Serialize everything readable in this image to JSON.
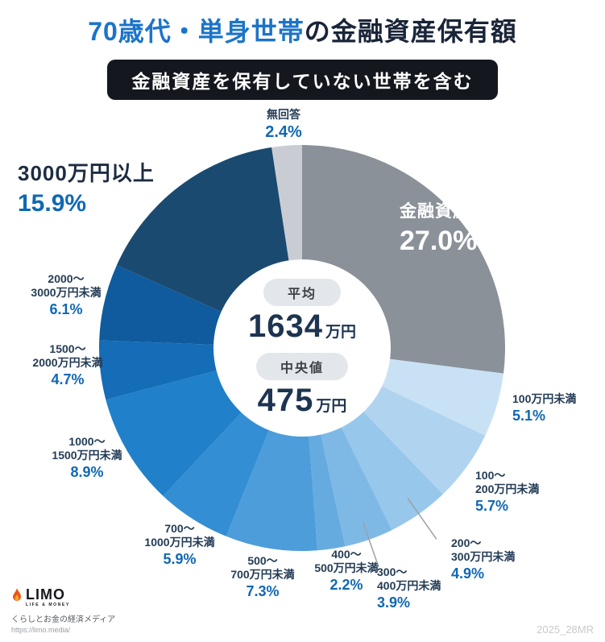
{
  "title": {
    "highlight": "70歳代・単身世帯",
    "rest": "の金融資産保有額"
  },
  "subtitle": "金融資産を保有していない世帯を含む",
  "center": {
    "avg_label": "平均",
    "avg_value": "1634",
    "avg_unit": "万円",
    "median_label": "中央値",
    "median_value": "475",
    "median_unit": "万円"
  },
  "callouts": {
    "no_answer": {
      "line1": "無回答",
      "pct": "2.4%"
    },
    "non_holding": {
      "line1": "金融資産非保有",
      "pct": "27.0%"
    },
    "u100": {
      "line1": "100万円未満",
      "pct": "5.1%"
    },
    "r100_200": {
      "line1": "100〜",
      "line2": "200万円未満",
      "pct": "5.7%"
    },
    "r200_300": {
      "line1": "200〜",
      "line2": "300万円未満",
      "pct": "4.9%"
    },
    "r300_400": {
      "line1": "300〜",
      "line2": "400万円未満",
      "pct": "3.9%"
    },
    "r400_500": {
      "line1": "400〜",
      "line2": "500万円未満",
      "pct": "2.2%"
    },
    "r500_700": {
      "line1": "500〜",
      "line2": "700万円未満",
      "pct": "7.3%"
    },
    "r700_1000": {
      "line1": "700〜",
      "line2": "1000万円未満",
      "pct": "5.9%"
    },
    "r1000_1500": {
      "line1": "1000〜",
      "line2": "1500万円未満",
      "pct": "8.9%"
    },
    "r1500_2000": {
      "line1": "1500〜",
      "line2": "2000万円未満",
      "pct": "4.7%"
    },
    "r2000_3000": {
      "line1": "2000〜",
      "line2": "3000万円未満",
      "pct": "6.1%"
    },
    "over3000": {
      "line1": "3000万円以上",
      "pct": "15.9%"
    }
  },
  "footer": {
    "logo": "LIMO",
    "logo_sub": "LIFE & MONEY",
    "tagline": "くらしとお金の経済メディア",
    "url": "https://limo.media/",
    "watermark": "2025_28MR"
  },
  "chart_data": {
    "type": "pie",
    "donut": true,
    "title": "70歳代・単身世帯の金融資産保有額（金融資産を保有していない世帯を含む）",
    "start_angle_deg": 0,
    "direction": "clockwise",
    "unit": "%",
    "segments": [
      {
        "label": "金融資産非保有",
        "value": 27.0,
        "color": "#8b9199"
      },
      {
        "label": "100万円未満",
        "value": 5.1,
        "color": "#c9e1f5"
      },
      {
        "label": "100〜200万円未満",
        "value": 5.7,
        "color": "#b0d4f0"
      },
      {
        "label": "200〜300万円未満",
        "value": 4.9,
        "color": "#97c7eb"
      },
      {
        "label": "300〜400万円未満",
        "value": 3.9,
        "color": "#7eb9e6"
      },
      {
        "label": "400〜500万円未満",
        "value": 2.2,
        "color": "#65abe0"
      },
      {
        "label": "500〜700万円未満",
        "value": 7.3,
        "color": "#4c9dda"
      },
      {
        "label": "700〜1000万円未満",
        "value": 5.9,
        "color": "#338ed3"
      },
      {
        "label": "1000〜1500万円未満",
        "value": 8.9,
        "color": "#2080ca"
      },
      {
        "label": "1500〜2000万円未満",
        "value": 4.7,
        "color": "#156cb7"
      },
      {
        "label": "2000〜3000万円未満",
        "value": 6.1,
        "color": "#0f5b9d"
      },
      {
        "label": "3000万円以上",
        "value": 15.9,
        "color": "#1a4a70"
      },
      {
        "label": "無回答",
        "value": 2.4,
        "color": "#c9cdd3"
      }
    ],
    "average": "1634万円",
    "median": "475万円",
    "colors": {
      "percent_text": "#1068b4",
      "label_text": "#243c56",
      "title_highlight": "#1c74c9",
      "title_dark": "#1a2438"
    }
  }
}
